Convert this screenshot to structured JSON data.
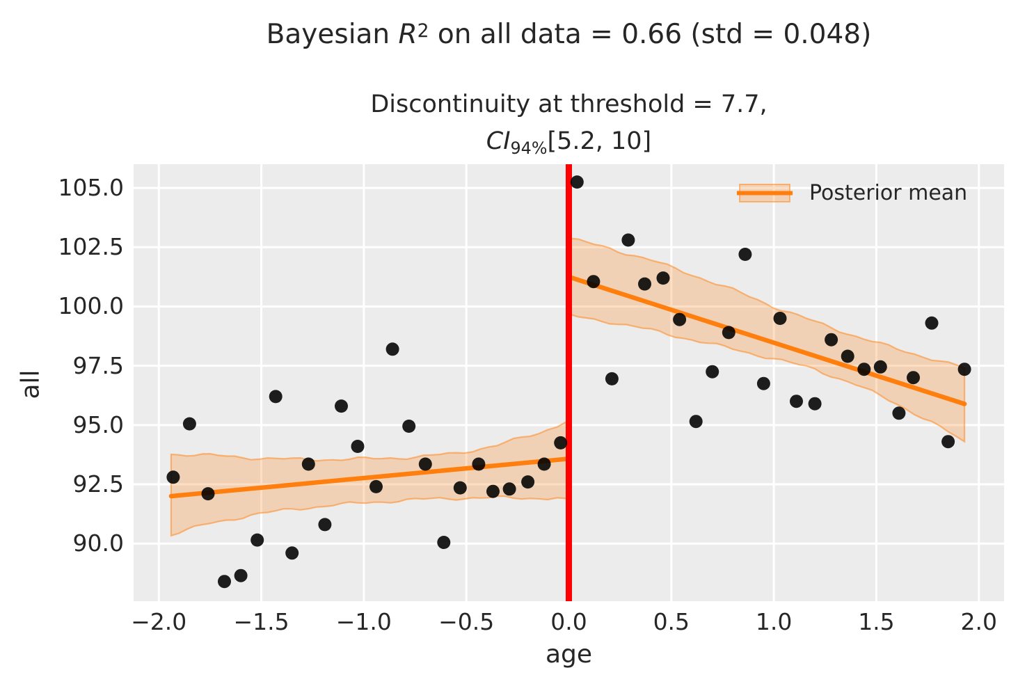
{
  "figure": {
    "title": {
      "prefix": "Bayesian ",
      "variable": "R",
      "superscript": "2",
      "suffix": " on all data = 0.66 (std = 0.048)"
    },
    "axes_title": {
      "line1": "Discontinuity at threshold = 7.7,",
      "line2_var": "CI",
      "line2_sub": "94%",
      "line2_rest": "[5.2, 10]"
    }
  },
  "legend": {
    "label": "Posterior mean"
  },
  "chart_data": {
    "type": "scatter",
    "title": "Bayesian R^2 on all data = 0.66 (std = 0.048)",
    "subtitle": "Discontinuity at threshold = 7.7, CI_94% [5.2, 10]",
    "xlabel": "age",
    "ylabel": "all",
    "xlim": [
      -2.123,
      2.123
    ],
    "ylim": [
      87.57,
      106.0
    ],
    "grid": true,
    "legend_position": "upper right",
    "xticks": [
      -2.0,
      -1.5,
      -1.0,
      -0.5,
      0.0,
      0.5,
      1.0,
      1.5,
      2.0
    ],
    "xtick_labels": [
      "−2.0",
      "−1.5",
      "−1.0",
      "−0.5",
      "0.0",
      "0.5",
      "1.0",
      "1.5",
      "2.0"
    ],
    "yticks": [
      105.0,
      102.5,
      100.0,
      97.5,
      95.0,
      92.5,
      90.0
    ],
    "ytick_labels": [
      "105.0",
      "102.5",
      "100.0",
      "97.5",
      "95.0",
      "92.5",
      "90.0"
    ],
    "threshold_line": {
      "x": 0.0,
      "color": "#ff0000",
      "width": 9
    },
    "points": [
      [
        -1.93,
        92.8
      ],
      [
        -1.85,
        95.05
      ],
      [
        -1.76,
        92.1
      ],
      [
        -1.68,
        88.4
      ],
      [
        -1.6,
        88.65
      ],
      [
        -1.52,
        90.15
      ],
      [
        -1.43,
        96.2
      ],
      [
        -1.35,
        89.6
      ],
      [
        -1.27,
        93.35
      ],
      [
        -1.19,
        90.8
      ],
      [
        -1.11,
        95.8
      ],
      [
        -1.03,
        94.1
      ],
      [
        -0.94,
        92.4
      ],
      [
        -0.86,
        98.2
      ],
      [
        -0.78,
        94.95
      ],
      [
        -0.7,
        93.35
      ],
      [
        -0.61,
        90.05
      ],
      [
        -0.53,
        92.35
      ],
      [
        -0.44,
        93.35
      ],
      [
        -0.37,
        92.2
      ],
      [
        -0.29,
        92.3
      ],
      [
        -0.2,
        92.6
      ],
      [
        -0.12,
        93.35
      ],
      [
        -0.04,
        94.25
      ],
      [
        0.04,
        105.25
      ],
      [
        0.12,
        101.05
      ],
      [
        0.21,
        96.95
      ],
      [
        0.29,
        102.8
      ],
      [
        0.37,
        100.95
      ],
      [
        0.46,
        101.2
      ],
      [
        0.54,
        99.45
      ],
      [
        0.62,
        95.15
      ],
      [
        0.7,
        97.25
      ],
      [
        0.78,
        98.9
      ],
      [
        0.86,
        102.2
      ],
      [
        0.95,
        96.75
      ],
      [
        1.03,
        99.5
      ],
      [
        1.11,
        96.0
      ],
      [
        1.2,
        95.9
      ],
      [
        1.28,
        98.6
      ],
      [
        1.36,
        97.9
      ],
      [
        1.44,
        97.35
      ],
      [
        1.52,
        97.45
      ],
      [
        1.61,
        95.5
      ],
      [
        1.68,
        97.0
      ],
      [
        1.77,
        99.3
      ],
      [
        1.85,
        94.3
      ],
      [
        1.93,
        97.35
      ]
    ],
    "segments": [
      {
        "name": "pre-threshold",
        "mean": [
          [
            -1.94,
            92.0
          ],
          [
            -0.01,
            93.57
          ]
        ],
        "band": [
          [
            -1.94,
            93.78,
            90.38
          ],
          [
            -1.75,
            93.72,
            90.85
          ],
          [
            -1.55,
            93.62,
            91.2
          ],
          [
            -1.35,
            93.55,
            91.45
          ],
          [
            -1.15,
            93.55,
            91.62
          ],
          [
            -0.95,
            93.58,
            91.75
          ],
          [
            -0.75,
            93.65,
            91.85
          ],
          [
            -0.55,
            93.8,
            91.92
          ],
          [
            -0.35,
            94.15,
            91.93
          ],
          [
            -0.15,
            94.65,
            91.92
          ],
          [
            -0.01,
            95.15,
            91.9
          ]
        ]
      },
      {
        "name": "post-threshold",
        "mean": [
          [
            0.01,
            101.22
          ],
          [
            1.93,
            95.89
          ]
        ],
        "band": [
          [
            0.01,
            102.85,
            99.6
          ],
          [
            0.2,
            102.45,
            99.35
          ],
          [
            0.4,
            101.95,
            99.0
          ],
          [
            0.6,
            101.35,
            98.6
          ],
          [
            0.8,
            100.7,
            98.2
          ],
          [
            1.0,
            100.0,
            97.8
          ],
          [
            1.2,
            99.35,
            97.35
          ],
          [
            1.4,
            98.75,
            96.7
          ],
          [
            1.6,
            98.2,
            95.9
          ],
          [
            1.77,
            97.8,
            95.1
          ],
          [
            1.93,
            97.4,
            94.3
          ]
        ]
      }
    ],
    "colors": {
      "posterior_mean": "#ff7f0e",
      "credible_band_fill": "rgba(255,127,14,0.25)",
      "credible_band_edge": "rgba(255,127,14,0.5)",
      "threshold": "#ff0000",
      "points": "#000000",
      "plot_background": "#ececec",
      "gridlines": "#ffffff",
      "text": "#262626"
    }
  }
}
